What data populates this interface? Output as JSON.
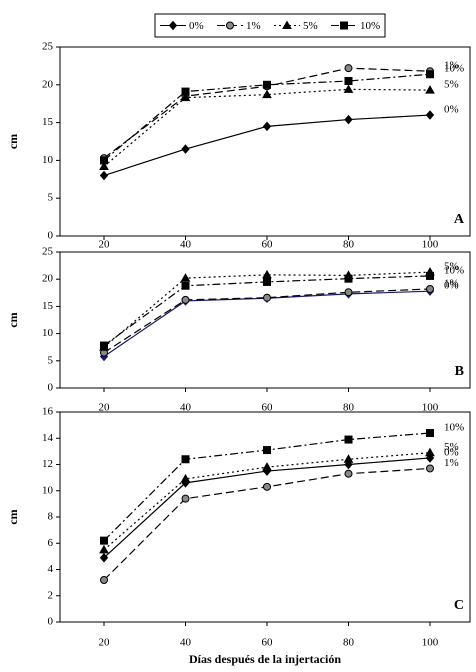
{
  "chart_data": [
    {
      "type": "line",
      "panel_label": "A",
      "y_label": "cm",
      "categories": [
        "20",
        "40",
        "60",
        "80",
        "100"
      ],
      "ylim": [
        0,
        25
      ],
      "yticks": [
        0,
        5,
        10,
        15,
        20,
        25
      ],
      "series": [
        {
          "name": "0%",
          "color": "#000000",
          "marker": "diamond",
          "dash": "solid",
          "values": [
            8,
            11.5,
            14.5,
            15.4,
            16
          ]
        },
        {
          "name": "1%",
          "color": "#000000",
          "marker": "circle",
          "dash": "dashed",
          "values": [
            10.3,
            18.5,
            19.8,
            22.2,
            21.8
          ]
        },
        {
          "name": "5%",
          "color": "#000000",
          "marker": "triangle",
          "dash": "dotted",
          "values": [
            9.2,
            18.3,
            18.7,
            19.4,
            19.3
          ]
        },
        {
          "name": "10%",
          "color": "#000000",
          "marker": "square",
          "dash": "dashdot",
          "values": [
            10,
            19.1,
            20,
            20.5,
            21.4
          ]
        }
      ]
    },
    {
      "type": "line",
      "panel_label": "B",
      "y_label": "cm",
      "categories": [
        "20",
        "40",
        "60",
        "80",
        "100"
      ],
      "ylim": [
        0,
        25
      ],
      "yticks": [
        0,
        5,
        10,
        15,
        20,
        25
      ],
      "series": [
        {
          "name": "0%",
          "color": "#1a1a6e",
          "marker": "diamond",
          "dash": "solid",
          "values": [
            5.8,
            16,
            16.5,
            17.3,
            17.8
          ]
        },
        {
          "name": "1%",
          "color": "#000000",
          "marker": "circle",
          "dash": "dashed",
          "values": [
            6.5,
            16.2,
            16.6,
            17.6,
            18.2
          ]
        },
        {
          "name": "5%",
          "color": "#000000",
          "marker": "triangle",
          "dash": "dotted",
          "values": [
            7.5,
            20.2,
            20.8,
            20.7,
            21.3
          ]
        },
        {
          "name": "10%",
          "color": "#000000",
          "marker": "square",
          "dash": "dashdot",
          "values": [
            7.8,
            18.8,
            19.5,
            20.1,
            20.6
          ]
        }
      ]
    },
    {
      "type": "line",
      "panel_label": "C",
      "y_label": "cm",
      "x_label": "Días después de la injertación",
      "categories": [
        "20",
        "40",
        "60",
        "80",
        "100"
      ],
      "ylim": [
        0,
        16
      ],
      "yticks": [
        0,
        2,
        4,
        6,
        8,
        10,
        12,
        14,
        16
      ],
      "series": [
        {
          "name": "0%",
          "color": "#000000",
          "marker": "diamond",
          "dash": "solid",
          "values": [
            4.9,
            10.6,
            11.5,
            12,
            12.5
          ]
        },
        {
          "name": "1%",
          "color": "#000000",
          "marker": "circle",
          "dash": "dashed",
          "values": [
            3.2,
            9.4,
            10.3,
            11.3,
            11.7
          ]
        },
        {
          "name": "5%",
          "color": "#000000",
          "marker": "triangle",
          "dash": "dotted",
          "values": [
            5.5,
            10.9,
            11.8,
            12.4,
            12.9
          ]
        },
        {
          "name": "10%",
          "color": "#000000",
          "marker": "square",
          "dash": "dashdot",
          "values": [
            6.2,
            12.4,
            13.1,
            13.9,
            14.4
          ]
        }
      ]
    }
  ]
}
